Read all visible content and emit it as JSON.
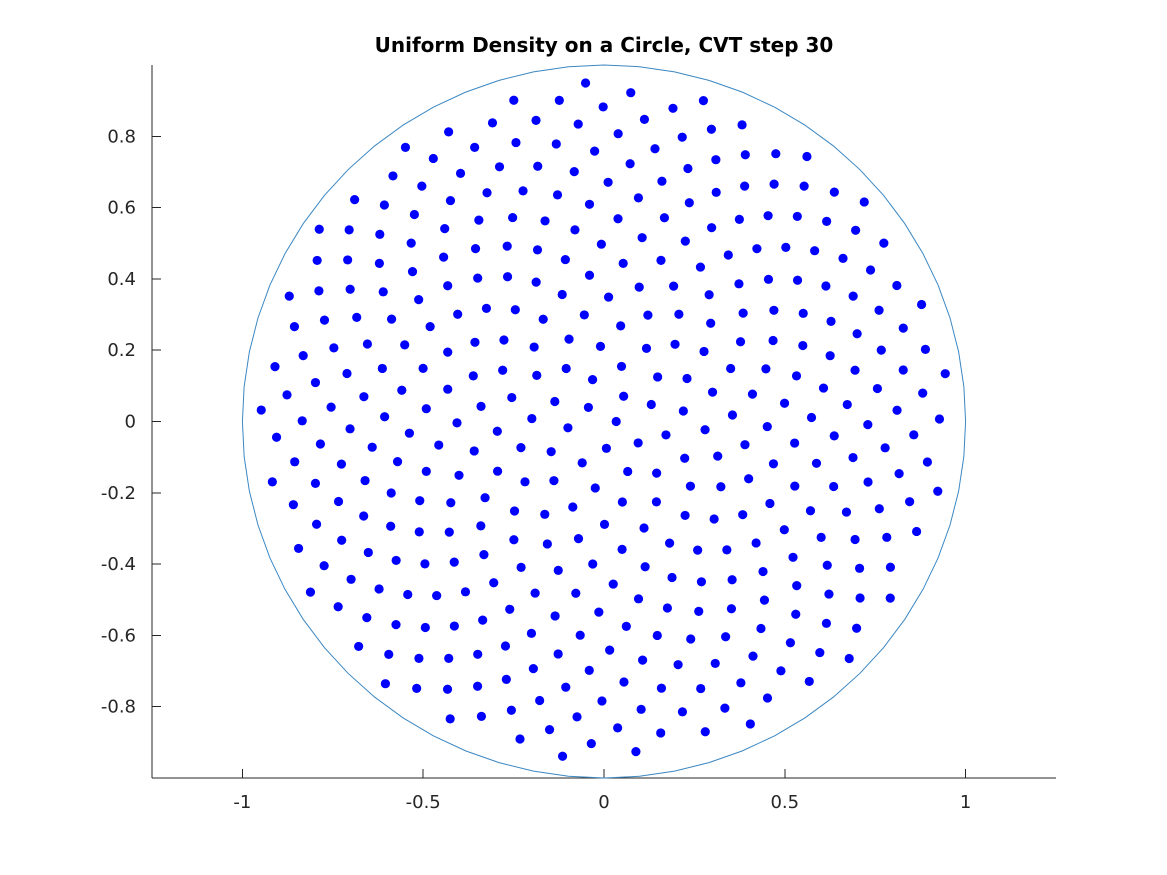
{
  "chart_data": {
    "type": "scatter",
    "title": "Uniform Density on a Circle, CVT step 30",
    "xlabel": "",
    "ylabel": "",
    "xlim": [
      -1.25,
      1.25
    ],
    "ylim": [
      -1.0,
      1.0
    ],
    "x_ticks": [
      -1,
      -0.5,
      0,
      0.5,
      1
    ],
    "x_tick_labels": [
      "-1",
      "-0.5",
      "0",
      "0.5",
      "1"
    ],
    "y_ticks": [
      0.8,
      0.6,
      0.4,
      0.2,
      0,
      -0.2,
      -0.4,
      -0.6,
      -0.8
    ],
    "y_tick_labels": [
      "0.8",
      "0.6",
      "0.4",
      "0.2",
      "0",
      "-0.2",
      "-0.4",
      "-0.6",
      "-0.8"
    ],
    "grid": false,
    "aspect": "equal",
    "boundary": {
      "shape": "circle",
      "center": [
        0,
        0
      ],
      "radius": 1.0,
      "color": "#3b87c2"
    },
    "point_color": "#0000ff",
    "point_count": 400,
    "distribution": "uniform CVT in unit circle (sunflower approximation)"
  }
}
